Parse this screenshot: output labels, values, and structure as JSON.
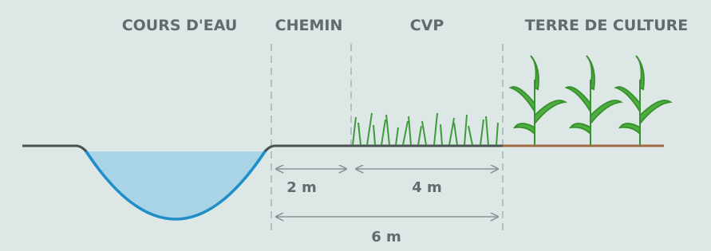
{
  "headers": {
    "water": "COURS D'EAU",
    "path": "CHEMIN",
    "strip": "CVP",
    "field": "TERRE DE CULTURE"
  },
  "dimensions": {
    "path_width": "2 m",
    "strip_width": "4 m",
    "total_width": "6 m"
  }
}
